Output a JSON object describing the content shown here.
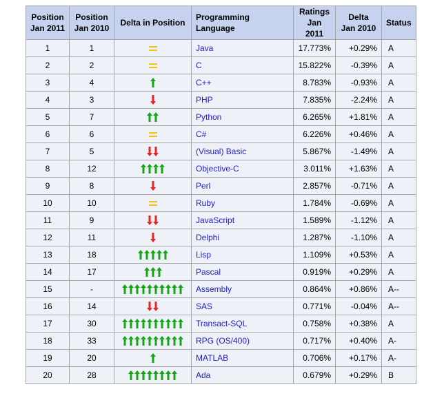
{
  "headers": {
    "pos2011": [
      "Position",
      "Jan 2011"
    ],
    "pos2010": [
      "Position",
      "Jan 2010"
    ],
    "delta": "Delta in Position",
    "language": "Programming Language",
    "ratings": [
      "Ratings",
      "Jan 2011"
    ],
    "delta_ratings": [
      "Delta",
      "Jan 2010"
    ],
    "status": "Status"
  },
  "colors": {
    "up": "#16a516",
    "down": "#e32525",
    "same": "#f4c20d",
    "header_bg": "#c6d2ee",
    "row_bg": "#eef1f7",
    "link": "#1d1dc3"
  },
  "rows": [
    {
      "pos2011": "1",
      "pos2010": "1",
      "delta": {
        "dir": "same",
        "count": 1
      },
      "language": "Java",
      "rating": "17.773%",
      "change": "+0.29%",
      "status": "A"
    },
    {
      "pos2011": "2",
      "pos2010": "2",
      "delta": {
        "dir": "same",
        "count": 1
      },
      "language": "C",
      "rating": "15.822%",
      "change": "-0.39%",
      "status": "A"
    },
    {
      "pos2011": "3",
      "pos2010": "4",
      "delta": {
        "dir": "up",
        "count": 1
      },
      "language": "C++",
      "rating": "8.783%",
      "change": "-0.93%",
      "status": "A"
    },
    {
      "pos2011": "4",
      "pos2010": "3",
      "delta": {
        "dir": "down",
        "count": 1
      },
      "language": "PHP",
      "rating": "7.835%",
      "change": "-2.24%",
      "status": "A"
    },
    {
      "pos2011": "5",
      "pos2010": "7",
      "delta": {
        "dir": "up",
        "count": 2
      },
      "language": "Python",
      "rating": "6.265%",
      "change": "+1.81%",
      "status": "A"
    },
    {
      "pos2011": "6",
      "pos2010": "6",
      "delta": {
        "dir": "same",
        "count": 1
      },
      "language": "C#",
      "rating": "6.226%",
      "change": "+0.46%",
      "status": "A"
    },
    {
      "pos2011": "7",
      "pos2010": "5",
      "delta": {
        "dir": "down",
        "count": 2
      },
      "language": "(Visual) Basic",
      "rating": "5.867%",
      "change": "-1.49%",
      "status": "A"
    },
    {
      "pos2011": "8",
      "pos2010": "12",
      "delta": {
        "dir": "up",
        "count": 4
      },
      "language": "Objective-C",
      "rating": "3.011%",
      "change": "+1.63%",
      "status": "A"
    },
    {
      "pos2011": "9",
      "pos2010": "8",
      "delta": {
        "dir": "down",
        "count": 1
      },
      "language": "Perl",
      "rating": "2.857%",
      "change": "-0.71%",
      "status": "A"
    },
    {
      "pos2011": "10",
      "pos2010": "10",
      "delta": {
        "dir": "same",
        "count": 1
      },
      "language": "Ruby",
      "rating": "1.784%",
      "change": "-0.69%",
      "status": "A"
    },
    {
      "pos2011": "11",
      "pos2010": "9",
      "delta": {
        "dir": "down",
        "count": 2
      },
      "language": "JavaScript",
      "rating": "1.589%",
      "change": "-1.12%",
      "status": "A"
    },
    {
      "pos2011": "12",
      "pos2010": "11",
      "delta": {
        "dir": "down",
        "count": 1
      },
      "language": "Delphi",
      "rating": "1.287%",
      "change": "-1.10%",
      "status": "A"
    },
    {
      "pos2011": "13",
      "pos2010": "18",
      "delta": {
        "dir": "up",
        "count": 5
      },
      "language": "Lisp",
      "rating": "1.109%",
      "change": "+0.53%",
      "status": "A"
    },
    {
      "pos2011": "14",
      "pos2010": "17",
      "delta": {
        "dir": "up",
        "count": 3
      },
      "language": "Pascal",
      "rating": "0.919%",
      "change": "+0.29%",
      "status": "A"
    },
    {
      "pos2011": "15",
      "pos2010": "-",
      "delta": {
        "dir": "up",
        "count": 10
      },
      "language": "Assembly",
      "rating": "0.864%",
      "change": "+0.86%",
      "status": "A--"
    },
    {
      "pos2011": "16",
      "pos2010": "14",
      "delta": {
        "dir": "down",
        "count": 2
      },
      "language": "SAS",
      "rating": "0.771%",
      "change": "-0.04%",
      "status": "A--"
    },
    {
      "pos2011": "17",
      "pos2010": "30",
      "delta": {
        "dir": "up",
        "count": 10
      },
      "language": "Transact-SQL",
      "rating": "0.758%",
      "change": "+0.38%",
      "status": "A"
    },
    {
      "pos2011": "18",
      "pos2010": "33",
      "delta": {
        "dir": "up",
        "count": 10
      },
      "language": "RPG (OS/400)",
      "rating": "0.717%",
      "change": "+0.40%",
      "status": "A-"
    },
    {
      "pos2011": "19",
      "pos2010": "20",
      "delta": {
        "dir": "up",
        "count": 1
      },
      "language": "MATLAB",
      "rating": "0.706%",
      "change": "+0.17%",
      "status": "A-"
    },
    {
      "pos2011": "20",
      "pos2010": "28",
      "delta": {
        "dir": "up",
        "count": 8
      },
      "language": "Ada",
      "rating": "0.679%",
      "change": "+0.29%",
      "status": "B"
    }
  ]
}
